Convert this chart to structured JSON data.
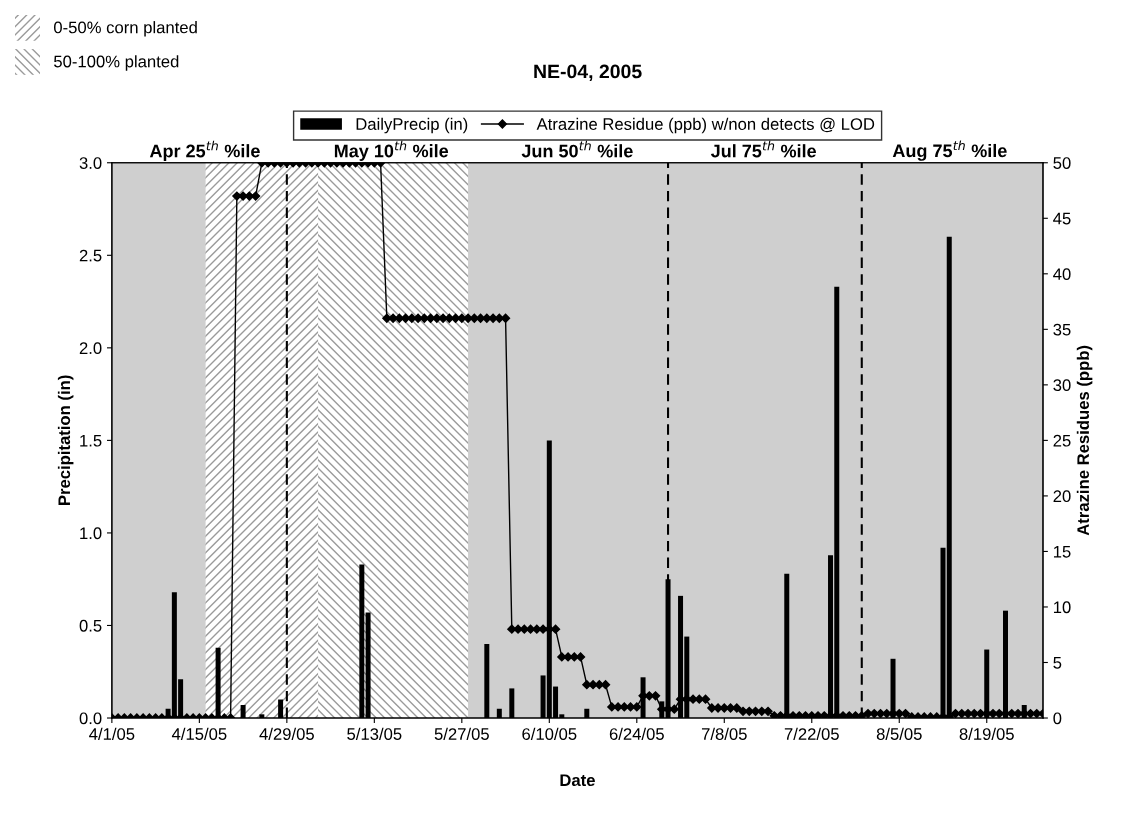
{
  "chart_data": {
    "type": "bar",
    "title": "NE-04, 2005",
    "xlabel": "Date",
    "ylabel": "Precipitation (in)",
    "y2label": "Atrazine Residues (ppb)",
    "xlim": [
      "2005-04-01",
      "2005-08-28"
    ],
    "xticks": [
      {
        "value": "2005-04-01",
        "label": "4/1/05"
      },
      {
        "value": "2005-04-15",
        "label": "4/15/05"
      },
      {
        "value": "2005-04-29",
        "label": "4/29/05"
      },
      {
        "value": "2005-05-13",
        "label": "5/13/05"
      },
      {
        "value": "2005-05-27",
        "label": "5/27/05"
      },
      {
        "value": "2005-06-10",
        "label": "6/10/05"
      },
      {
        "value": "2005-06-24",
        "label": "6/24/05"
      },
      {
        "value": "2005-07-08",
        "label": "7/8/05"
      },
      {
        "value": "2005-07-22",
        "label": "7/22/05"
      },
      {
        "value": "2005-08-05",
        "label": "8/5/05"
      },
      {
        "value": "2005-08-19",
        "label": "8/19/05"
      }
    ],
    "ylim": [
      0,
      3.0
    ],
    "yticks": [
      {
        "value": 0,
        "label": "0.0"
      },
      {
        "value": 0.5,
        "label": "0.5"
      },
      {
        "value": 1.0,
        "label": "1.0"
      },
      {
        "value": 1.5,
        "label": "1.5"
      },
      {
        "value": 2.0,
        "label": "2.0"
      },
      {
        "value": 2.5,
        "label": "2.5"
      },
      {
        "value": 3.0,
        "label": "3.0"
      }
    ],
    "y2lim": [
      0,
      50
    ],
    "y2ticks": [
      0,
      5,
      10,
      15,
      20,
      25,
      30,
      35,
      40,
      45,
      50
    ],
    "grid": false,
    "legend": "top",
    "series": [
      {
        "name": "DailyPrecip (in)",
        "color": "#000000",
        "x": [
          "2005-04-10",
          "2005-04-11",
          "2005-04-12",
          "2005-04-18",
          "2005-04-22",
          "2005-04-25",
          "2005-04-28",
          "2005-05-11",
          "2005-05-12",
          "2005-05-31",
          "2005-06-02",
          "2005-06-04",
          "2005-06-09",
          "2005-06-10",
          "2005-06-11",
          "2005-06-12",
          "2005-06-16",
          "2005-06-25",
          "2005-06-28",
          "2005-06-29",
          "2005-07-01",
          "2005-07-02",
          "2005-07-18",
          "2005-07-25",
          "2005-07-26",
          "2005-08-04",
          "2005-08-12",
          "2005-08-13",
          "2005-08-19",
          "2005-08-22",
          "2005-08-25"
        ],
        "values": [
          0.05,
          0.68,
          0.21,
          0.38,
          0.07,
          0.02,
          0.1,
          0.83,
          0.57,
          0.4,
          0.05,
          0.16,
          0.23,
          1.5,
          0.17,
          0.02,
          0.05,
          0.22,
          0.09,
          0.75,
          0.66,
          0.44,
          0.78,
          0.88,
          2.33,
          0.32,
          0.92,
          2.6,
          0.37,
          0.58,
          0.07
        ]
      },
      {
        "name": "Atrazine Residue (ppb) w/non detects @ LOD",
        "type": "line",
        "axis": "y2",
        "color": "#000000",
        "marker": "diamond",
        "line_style": "solid",
        "x": [
          "2005-04-01",
          "2005-04-02",
          "2005-04-03",
          "2005-04-04",
          "2005-04-05",
          "2005-04-06",
          "2005-04-07",
          "2005-04-08",
          "2005-04-09",
          "2005-04-10",
          "2005-04-11",
          "2005-04-12",
          "2005-04-13",
          "2005-04-14",
          "2005-04-15",
          "2005-04-16",
          "2005-04-17",
          "2005-04-18",
          "2005-04-19",
          "2005-04-20",
          "2005-04-21",
          "2005-04-22",
          "2005-04-23",
          "2005-04-24",
          "2005-04-25",
          "2005-04-26",
          "2005-04-27",
          "2005-04-28",
          "2005-04-29",
          "2005-04-30",
          "2005-05-01",
          "2005-05-02",
          "2005-05-03",
          "2005-05-04",
          "2005-05-05",
          "2005-05-06",
          "2005-05-07",
          "2005-05-08",
          "2005-05-09",
          "2005-05-10",
          "2005-05-11",
          "2005-05-12",
          "2005-05-13",
          "2005-05-14",
          "2005-05-15",
          "2005-05-16",
          "2005-05-17",
          "2005-05-18",
          "2005-05-19",
          "2005-05-20",
          "2005-05-21",
          "2005-05-22",
          "2005-05-23",
          "2005-05-24",
          "2005-05-25",
          "2005-05-26",
          "2005-05-27",
          "2005-05-28",
          "2005-05-29",
          "2005-05-30",
          "2005-05-31",
          "2005-06-01",
          "2005-06-02",
          "2005-06-03",
          "2005-06-04",
          "2005-06-05",
          "2005-06-06",
          "2005-06-07",
          "2005-06-08",
          "2005-06-09",
          "2005-06-10",
          "2005-06-11",
          "2005-06-12",
          "2005-06-13",
          "2005-06-14",
          "2005-06-15",
          "2005-06-16",
          "2005-06-17",
          "2005-06-18",
          "2005-06-19",
          "2005-06-20",
          "2005-06-21",
          "2005-06-22",
          "2005-06-23",
          "2005-06-24",
          "2005-06-25",
          "2005-06-26",
          "2005-06-27",
          "2005-06-28",
          "2005-06-29",
          "2005-06-30",
          "2005-07-01",
          "2005-07-02",
          "2005-07-03",
          "2005-07-04",
          "2005-07-05",
          "2005-07-06",
          "2005-07-07",
          "2005-07-08",
          "2005-07-09",
          "2005-07-10",
          "2005-07-11",
          "2005-07-12",
          "2005-07-13",
          "2005-07-14",
          "2005-07-15",
          "2005-07-16",
          "2005-07-17",
          "2005-07-18",
          "2005-07-19",
          "2005-07-20",
          "2005-07-21",
          "2005-07-22",
          "2005-07-23",
          "2005-07-24",
          "2005-07-25",
          "2005-07-26",
          "2005-07-27",
          "2005-07-28",
          "2005-07-29",
          "2005-07-30",
          "2005-07-31",
          "2005-08-01",
          "2005-08-02",
          "2005-08-03",
          "2005-08-04",
          "2005-08-05",
          "2005-08-06",
          "2005-08-07",
          "2005-08-08",
          "2005-08-09",
          "2005-08-10",
          "2005-08-11",
          "2005-08-12",
          "2005-08-13",
          "2005-08-14",
          "2005-08-15",
          "2005-08-16",
          "2005-08-17",
          "2005-08-18",
          "2005-08-19",
          "2005-08-20",
          "2005-08-21",
          "2005-08-22",
          "2005-08-23",
          "2005-08-24",
          "2005-08-25",
          "2005-08-26",
          "2005-08-27",
          "2005-08-28"
        ],
        "values": [
          0,
          0,
          0,
          0,
          0,
          0,
          0,
          0,
          0,
          0,
          0,
          0,
          0,
          0,
          0,
          0,
          0,
          0,
          0,
          0,
          47,
          47,
          47,
          47,
          50,
          50,
          50,
          50,
          50,
          50,
          50,
          50,
          50,
          50,
          50,
          50,
          50,
          50,
          50,
          50,
          50,
          50,
          50,
          50,
          36,
          36,
          36,
          36,
          36,
          36,
          36,
          36,
          36,
          36,
          36,
          36,
          36,
          36,
          36,
          36,
          36,
          36,
          36,
          36,
          8,
          8,
          8,
          8,
          8,
          8,
          8,
          8,
          5.5,
          5.5,
          5.5,
          5.5,
          3,
          3,
          3,
          3,
          1,
          1,
          1,
          1,
          1,
          2,
          2,
          2,
          0.8,
          0.8,
          0.8,
          1.7,
          1.7,
          1.7,
          1.7,
          1.7,
          0.9,
          0.9,
          0.9,
          0.9,
          0.9,
          0.6,
          0.6,
          0.6,
          0.6,
          0.6,
          0.2,
          0.2,
          0.2,
          0.2,
          0.2,
          0.2,
          0.2,
          0.2,
          0.2,
          0.2,
          0.2,
          0.2,
          0.2,
          0.2,
          0.2,
          0.4,
          0.4,
          0.4,
          0.4,
          0.4,
          0.4,
          0.4,
          0.1,
          0.1,
          0.1,
          0.1,
          0.1,
          0.1,
          0.1,
          0.4,
          0.4,
          0.4,
          0.4,
          0.4,
          0.4,
          0.4,
          0.4,
          0.4,
          0.4,
          0.4,
          0.4,
          0.4,
          0.4,
          0.4
        ]
      }
    ],
    "bands": [
      {
        "axis": "x",
        "from": "2005-04-16",
        "to": "2005-05-04",
        "label": "0-50% corn planted",
        "color": "#ffffff"
      },
      {
        "axis": "x",
        "from": "2005-05-04",
        "to": "2005-05-28",
        "label": "50-100% planted",
        "color": "#ffffff"
      }
    ],
    "ref_lines": [
      {
        "axis": "x",
        "value": "2005-04-29",
        "line_style": "dashed"
      },
      {
        "axis": "x",
        "value": "2005-06-29",
        "line_style": "dashed"
      },
      {
        "axis": "x",
        "value": "2005-07-30",
        "line_style": "dashed"
      }
    ],
    "annotations": [
      "Apr 25$^{th}$ %ile",
      "May 10$^{th}$ %ile",
      "Jun 50$^{th}$ %ile",
      "Jul 75$^{th}$ %ile",
      "Aug 75$^{th}$ %ile"
    ]
  }
}
